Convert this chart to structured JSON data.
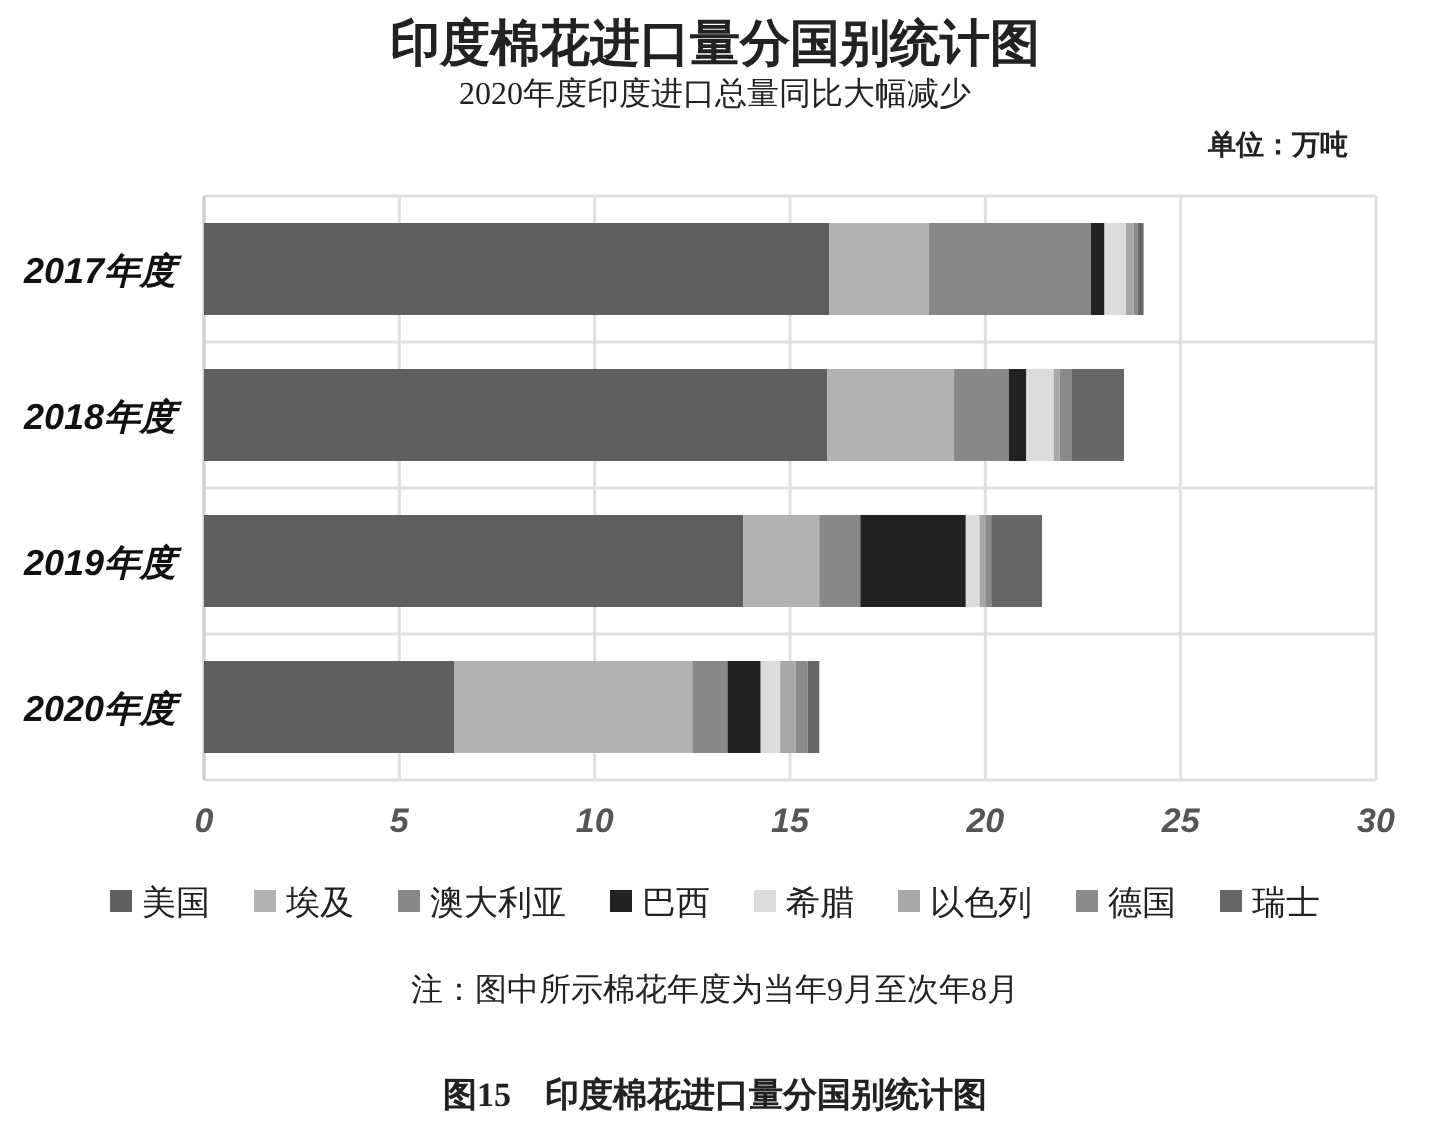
{
  "chart_data": {
    "type": "bar",
    "orientation": "horizontal",
    "stacked": true,
    "title": "印度棉花进口量分国别统计图",
    "subtitle": "2020年度印度进口总量同比大幅减少",
    "categories": [
      "2017年度",
      "2018年度",
      "2019年度",
      "2020年度"
    ],
    "series": [
      {
        "name": "美国",
        "color": "#5f5f5f",
        "values": [
          16.0,
          15.95,
          13.8,
          6.4
        ]
      },
      {
        "name": "埃及",
        "color": "#b2b2b2",
        "values": [
          2.55,
          3.25,
          1.95,
          6.1
        ]
      },
      {
        "name": "澳大利亚",
        "color": "#888888",
        "values": [
          4.15,
          1.4,
          1.05,
          0.9
        ]
      },
      {
        "name": "巴西",
        "color": "#222222",
        "values": [
          0.35,
          0.45,
          2.7,
          0.85
        ]
      },
      {
        "name": "希腊",
        "color": "#dcdcdc",
        "values": [
          0.55,
          0.7,
          0.35,
          0.5
        ]
      },
      {
        "name": "以色列",
        "color": "#a8a8a8",
        "values": [
          0.2,
          0.15,
          0.15,
          0.4
        ]
      },
      {
        "name": "德国",
        "color": "#8a8a8a",
        "values": [
          0.1,
          0.3,
          0.15,
          0.3
        ]
      },
      {
        "name": "瑞士",
        "color": "#666666",
        "values": [
          0.15,
          1.35,
          1.3,
          0.3
        ]
      }
    ],
    "xlim": [
      0,
      30
    ],
    "xticks": [
      0,
      5,
      10,
      15,
      20,
      25,
      30
    ],
    "grid": true,
    "legend": "bottom",
    "annotations": [
      "单位：万吨",
      "注：图中所示棉花年度为当年9月至次年8月",
      "图15　印度棉花进口量分国别统计图"
    ]
  }
}
